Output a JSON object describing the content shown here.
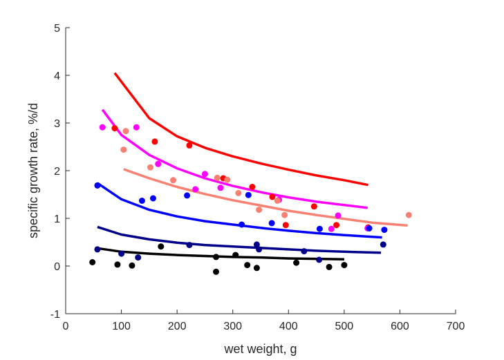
{
  "chart_data": {
    "type": "scatter",
    "title": "",
    "xlabel": "wet weight, g",
    "ylabel": "specific growth rate, %/d",
    "xlim": [
      0,
      700
    ],
    "ylim": [
      -1,
      5
    ],
    "xticks": [
      "0",
      "100",
      "200",
      "300",
      "400",
      "500",
      "600",
      "700"
    ],
    "yticks": [
      "-1",
      "0",
      "1",
      "2",
      "3",
      "4",
      "5"
    ],
    "grid": false,
    "legend": "none",
    "series": [
      {
        "color": "#ff0000",
        "points": [
          [
            88,
            2.89
          ],
          [
            160,
            2.61
          ],
          [
            222,
            2.53
          ],
          [
            283,
            1.84
          ],
          [
            335,
            1.66
          ],
          [
            371,
            1.45
          ],
          [
            395,
            0.86
          ],
          [
            446,
            1.25
          ],
          [
            486,
            0.86
          ],
          [
            543,
            0.81
          ]
        ],
        "curve": [
          [
            88,
            4.05
          ],
          [
            150,
            3.1
          ],
          [
            200,
            2.72
          ],
          [
            250,
            2.48
          ],
          [
            300,
            2.3
          ],
          [
            350,
            2.15
          ],
          [
            400,
            2.02
          ],
          [
            450,
            1.9
          ],
          [
            500,
            1.8
          ],
          [
            543,
            1.7
          ]
        ]
      },
      {
        "color": "#ff00ff",
        "points": [
          [
            66,
            2.91
          ],
          [
            127,
            2.91
          ],
          [
            166,
            2.14
          ],
          [
            233,
            1.61
          ],
          [
            250,
            1.93
          ],
          [
            278,
            1.64
          ],
          [
            383,
            1.39
          ],
          [
            477,
            0.78
          ],
          [
            489,
            1.06
          ],
          [
            542,
            0.79
          ]
        ],
        "curve": [
          [
            66,
            3.28
          ],
          [
            100,
            2.75
          ],
          [
            150,
            2.33
          ],
          [
            200,
            2.05
          ],
          [
            250,
            1.84
          ],
          [
            300,
            1.68
          ],
          [
            350,
            1.55
          ],
          [
            400,
            1.44
          ],
          [
            450,
            1.35
          ],
          [
            500,
            1.28
          ],
          [
            542,
            1.22
          ]
        ]
      },
      {
        "color": "#fa8072",
        "points": [
          [
            104,
            2.44
          ],
          [
            108,
            2.83
          ],
          [
            152,
            2.07
          ],
          [
            193,
            1.8
          ],
          [
            272,
            1.85
          ],
          [
            290,
            1.81
          ],
          [
            310,
            1.53
          ],
          [
            347,
            1.18
          ],
          [
            380,
            1.37
          ],
          [
            393,
            1.07
          ],
          [
            616,
            1.07
          ]
        ],
        "curve": [
          [
            104,
            2.03
          ],
          [
            150,
            1.84
          ],
          [
            200,
            1.66
          ],
          [
            250,
            1.51
          ],
          [
            300,
            1.38
          ],
          [
            350,
            1.27
          ],
          [
            400,
            1.16
          ],
          [
            450,
            1.07
          ],
          [
            500,
            0.99
          ],
          [
            550,
            0.91
          ],
          [
            614,
            0.85
          ]
        ]
      },
      {
        "color": "#0000ff",
        "points": [
          [
            57,
            1.69
          ],
          [
            137,
            1.37
          ],
          [
            157,
            1.42
          ],
          [
            218,
            1.48
          ],
          [
            316,
            0.87
          ],
          [
            328,
            1.49
          ],
          [
            370,
            0.9
          ],
          [
            456,
            0.78
          ],
          [
            545,
            0.79
          ],
          [
            572,
            0.76
          ]
        ],
        "curve": [
          [
            57,
            1.74
          ],
          [
            100,
            1.4
          ],
          [
            150,
            1.18
          ],
          [
            200,
            1.04
          ],
          [
            250,
            0.94
          ],
          [
            300,
            0.87
          ],
          [
            350,
            0.8
          ],
          [
            400,
            0.74
          ],
          [
            450,
            0.69
          ],
          [
            500,
            0.65
          ],
          [
            568,
            0.6
          ]
        ]
      },
      {
        "color": "#00008b",
        "points": [
          [
            57,
            0.35
          ],
          [
            100,
            0.26
          ],
          [
            130,
            0.18
          ],
          [
            222,
            0.44
          ],
          [
            343,
            0.45
          ],
          [
            347,
            0.35
          ],
          [
            428,
            0.31
          ],
          [
            455,
            0.13
          ],
          [
            570,
            0.45
          ]
        ],
        "curve": [
          [
            57,
            0.82
          ],
          [
            100,
            0.66
          ],
          [
            150,
            0.56
          ],
          [
            200,
            0.49
          ],
          [
            250,
            0.44
          ],
          [
            300,
            0.41
          ],
          [
            350,
            0.38
          ],
          [
            400,
            0.35
          ],
          [
            450,
            0.32
          ],
          [
            500,
            0.3
          ],
          [
            566,
            0.28
          ]
        ]
      },
      {
        "color": "#000000",
        "points": [
          [
            48,
            0.08
          ],
          [
            93,
            0.03
          ],
          [
            119,
            0.01
          ],
          [
            171,
            0.41
          ],
          [
            270,
            -0.12
          ],
          [
            270,
            0.19
          ],
          [
            305,
            0.23
          ],
          [
            326,
            0.02
          ],
          [
            343,
            -0.04
          ],
          [
            414,
            0.07
          ],
          [
            473,
            -0.02
          ],
          [
            500,
            0.02
          ]
        ],
        "curve": [
          [
            53,
            0.38
          ],
          [
            100,
            0.3
          ],
          [
            150,
            0.26
          ],
          [
            200,
            0.23
          ],
          [
            250,
            0.21
          ],
          [
            300,
            0.19
          ],
          [
            350,
            0.18
          ],
          [
            400,
            0.16
          ],
          [
            450,
            0.15
          ],
          [
            500,
            0.14
          ]
        ]
      }
    ]
  }
}
